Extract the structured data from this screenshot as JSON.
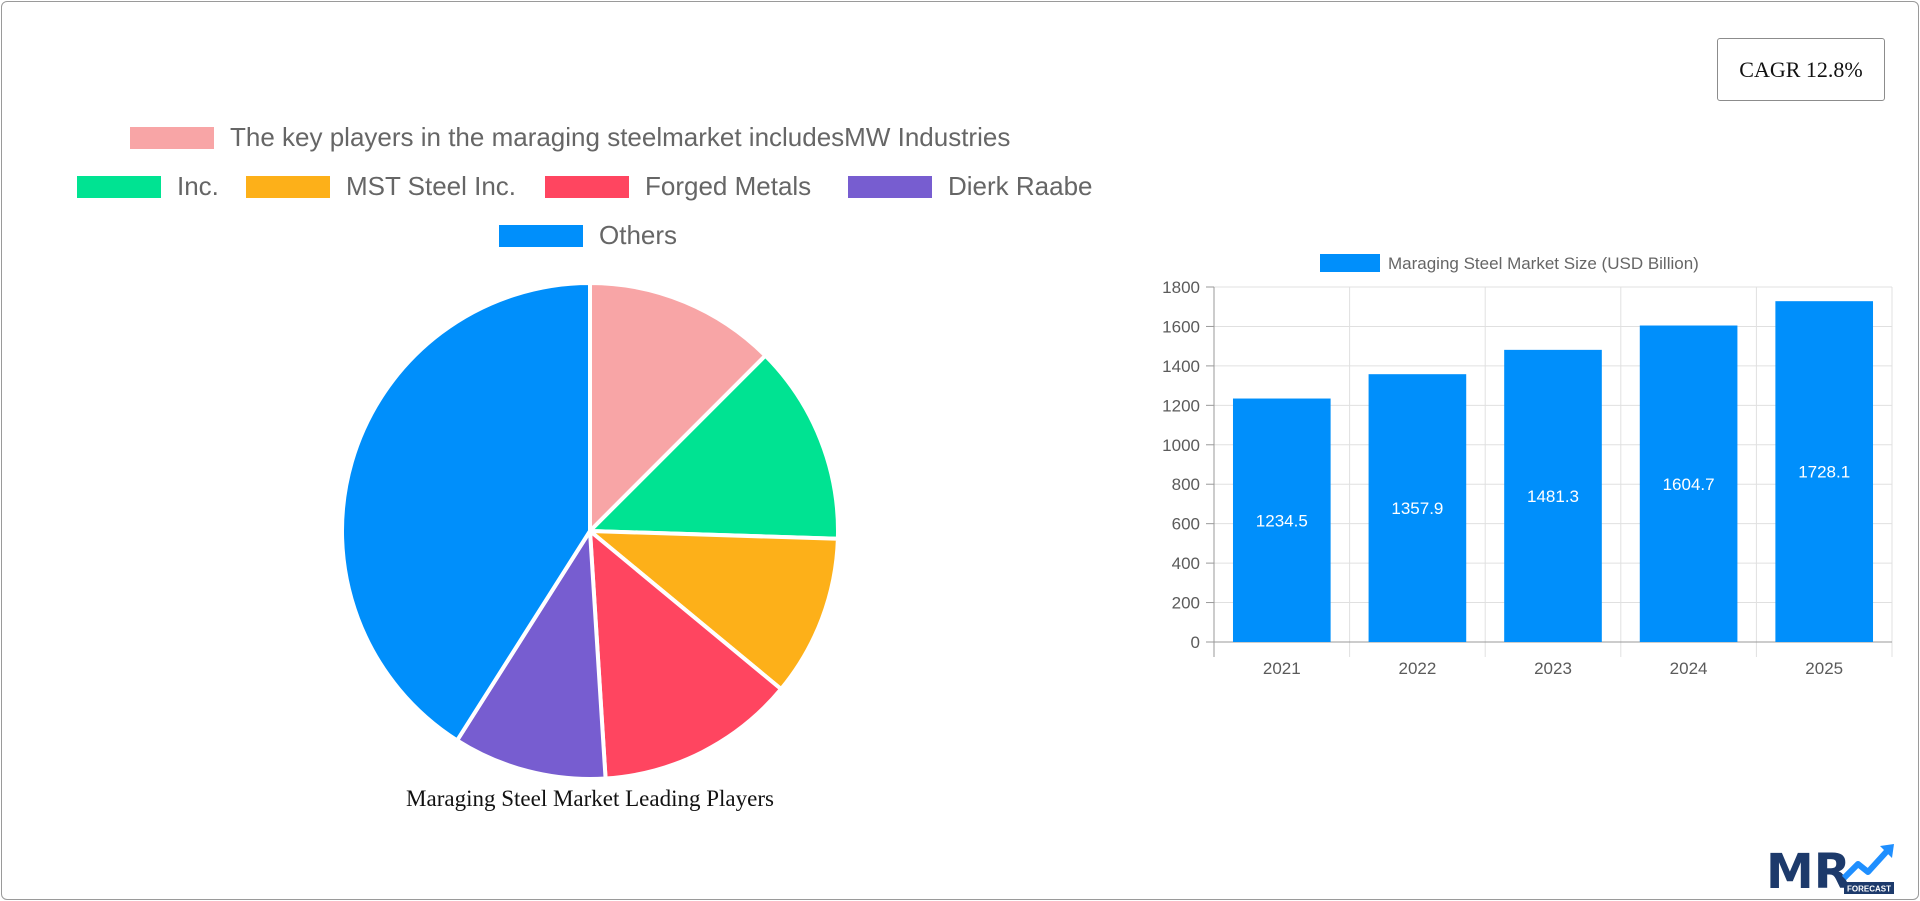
{
  "cagr_label": "CAGR 12.8%",
  "colors": {
    "pie": [
      "#f8a5a6",
      "#00e392",
      "#fdb019",
      "#ff4560",
      "#775dd0",
      "#008ffb"
    ],
    "bar": "#008ffb",
    "grid": "#e0e0e0",
    "axis_text": "#5b5b5b",
    "logo_navy": "#1d3a6b",
    "logo_blue": "#1f8fff"
  },
  "chart_data": [
    {
      "type": "pie",
      "title": "Maraging Steel Market Leading Players",
      "legend_position": "top",
      "slices": [
        {
          "label": "The key players in the maraging steelmarket includesMW Industries",
          "value": 12.5
        },
        {
          "label": "Inc.",
          "value": 13.0
        },
        {
          "label": "MST Steel Inc.",
          "value": 10.5
        },
        {
          "label": "Forged Metals",
          "value": 13.0
        },
        {
          "label": "Dierk Raabe",
          "value": 10.0
        },
        {
          "label": "Others",
          "value": 41.0
        }
      ]
    },
    {
      "type": "bar",
      "categories": [
        "2021",
        "2022",
        "2023",
        "2024",
        "2025"
      ],
      "series": [
        {
          "name": "Maraging Steel Market Size (USD Billion)",
          "values": [
            1234.5,
            1357.9,
            1481.3,
            1604.7,
            1728.1
          ]
        }
      ],
      "ylim": [
        0,
        1800
      ],
      "yticks": [
        0,
        200,
        400,
        600,
        800,
        1000,
        1200,
        1400,
        1600,
        1800
      ],
      "grid": true,
      "legend_position": "top",
      "data_labels": true
    }
  ],
  "logo": {
    "letters": "MR",
    "sub": "FORECAST"
  }
}
